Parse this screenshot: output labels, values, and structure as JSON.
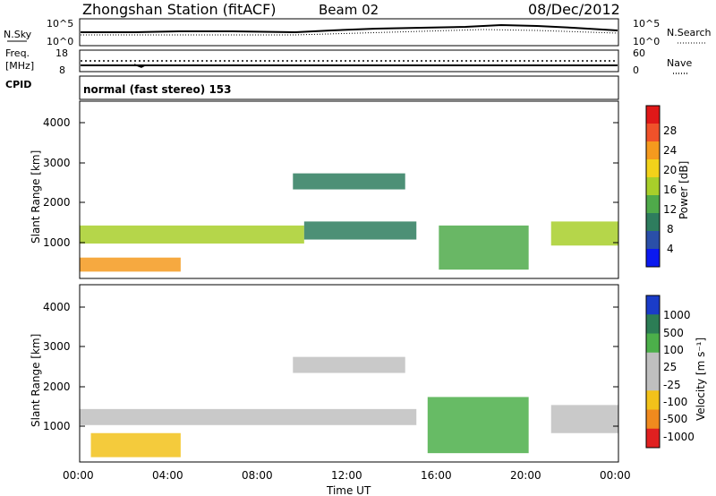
{
  "header": {
    "station": "Zhongshan Station (fitACF)",
    "beam": "Beam 02",
    "date": "08/Dec/2012"
  },
  "noise_panel": {
    "left_label": "N.Sky",
    "right_label": "N.Search",
    "left_ticks": [
      "10^5",
      "10^0"
    ],
    "right_ticks": [
      "10^5",
      "10^0"
    ]
  },
  "freq_panel": {
    "left_label_1": "Freq.",
    "left_label_2": "[MHz]",
    "right_label": "Nave",
    "left_ticks": [
      "18",
      "8"
    ],
    "right_ticks": [
      "60",
      "0"
    ]
  },
  "cpid_panel": {
    "label": "CPID",
    "text": "normal (fast stereo) 153"
  },
  "power_panel": {
    "ylabel": "Slant Range [km]",
    "yticks": [
      "4000",
      "3000",
      "2000",
      "1000"
    ],
    "colorbar_label": "Power [dB]",
    "colorbar_ticks": [
      "28",
      "24",
      "20",
      "16",
      "12",
      "8",
      "4"
    ],
    "colors": [
      "#0b19f0",
      "#2a4fa8",
      "#2e7d5e",
      "#4faa4a",
      "#a8cf2a",
      "#f2d21a",
      "#f59a1e",
      "#f0522a",
      "#e01818"
    ]
  },
  "velocity_panel": {
    "ylabel": "Slant Range [km]",
    "yticks": [
      "4000",
      "3000",
      "2000",
      "1000"
    ],
    "colorbar_label": "Velocity [m s⁻¹]",
    "colorbar_ticks": [
      "1000",
      "500",
      "100",
      "25",
      "-25",
      "-100",
      "-500",
      "-1000"
    ],
    "colors": [
      "#1a3cc8",
      "#2c7d55",
      "#4caf4a",
      "#bfbfbf",
      "#bfbfbf",
      "#f2c21a",
      "#f08a1e",
      "#e02020"
    ]
  },
  "x_axis": {
    "label": "Time UT",
    "ticks": [
      "00:00",
      "04:00",
      "08:00",
      "12:00",
      "16:00",
      "20:00",
      "00:00"
    ]
  },
  "chart_data": {
    "type": "heatmap",
    "title": "Zhongshan Station (fitACF)  Beam 02  08/Dec/2012",
    "x_unit": "UT hours",
    "xlim": [
      0,
      24
    ],
    "ylim_km": [
      180,
      4600
    ],
    "power_bands": [
      {
        "t0": 0.0,
        "t1": 10.0,
        "r0": 1050,
        "r1": 1500,
        "level": 16
      },
      {
        "t0": 10.0,
        "t1": 15.0,
        "r0": 1150,
        "r1": 1600,
        "level": 8
      },
      {
        "t0": 0.0,
        "t1": 4.5,
        "r0": 350,
        "r1": 700,
        "level": 24
      },
      {
        "t0": 9.5,
        "t1": 14.5,
        "r0": 2400,
        "r1": 2800,
        "level": 6
      },
      {
        "t0": 16.0,
        "t1": 20.0,
        "r0": 400,
        "r1": 1500,
        "level": 12
      },
      {
        "t0": 21.0,
        "t1": 24.0,
        "r0": 1000,
        "r1": 1600,
        "level": 14
      }
    ],
    "velocity_bands": [
      {
        "t0": 0.0,
        "t1": 15.0,
        "r0": 1100,
        "r1": 1500,
        "value": 0
      },
      {
        "t0": 0.5,
        "t1": 4.5,
        "r0": 300,
        "r1": 900,
        "value": -300
      },
      {
        "t0": 9.5,
        "t1": 14.5,
        "r0": 2400,
        "r1": 2800,
        "value": 0
      },
      {
        "t0": 15.5,
        "t1": 20.0,
        "r0": 400,
        "r1": 1800,
        "value": 100
      },
      {
        "t0": 21.0,
        "t1": 24.0,
        "r0": 900,
        "r1": 1600,
        "value": 0
      }
    ]
  }
}
